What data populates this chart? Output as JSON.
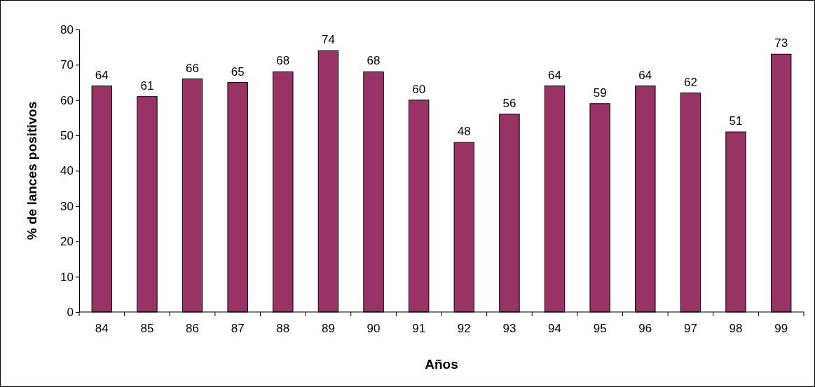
{
  "chart_data": {
    "type": "bar",
    "xlabel": "Años",
    "ylabel": "% de lances positivos",
    "categories": [
      "84",
      "85",
      "86",
      "87",
      "88",
      "89",
      "90",
      "91",
      "92",
      "93",
      "94",
      "95",
      "96",
      "97",
      "98",
      "99"
    ],
    "values": [
      64,
      61,
      66,
      65,
      68,
      74,
      68,
      60,
      48,
      56,
      64,
      59,
      64,
      62,
      51,
      73
    ],
    "color": "#993366",
    "ylim": [
      0,
      80
    ],
    "yticks": [
      0,
      10,
      20,
      30,
      40,
      50,
      60,
      70,
      80
    ],
    "grid": false,
    "data_labels": true
  }
}
